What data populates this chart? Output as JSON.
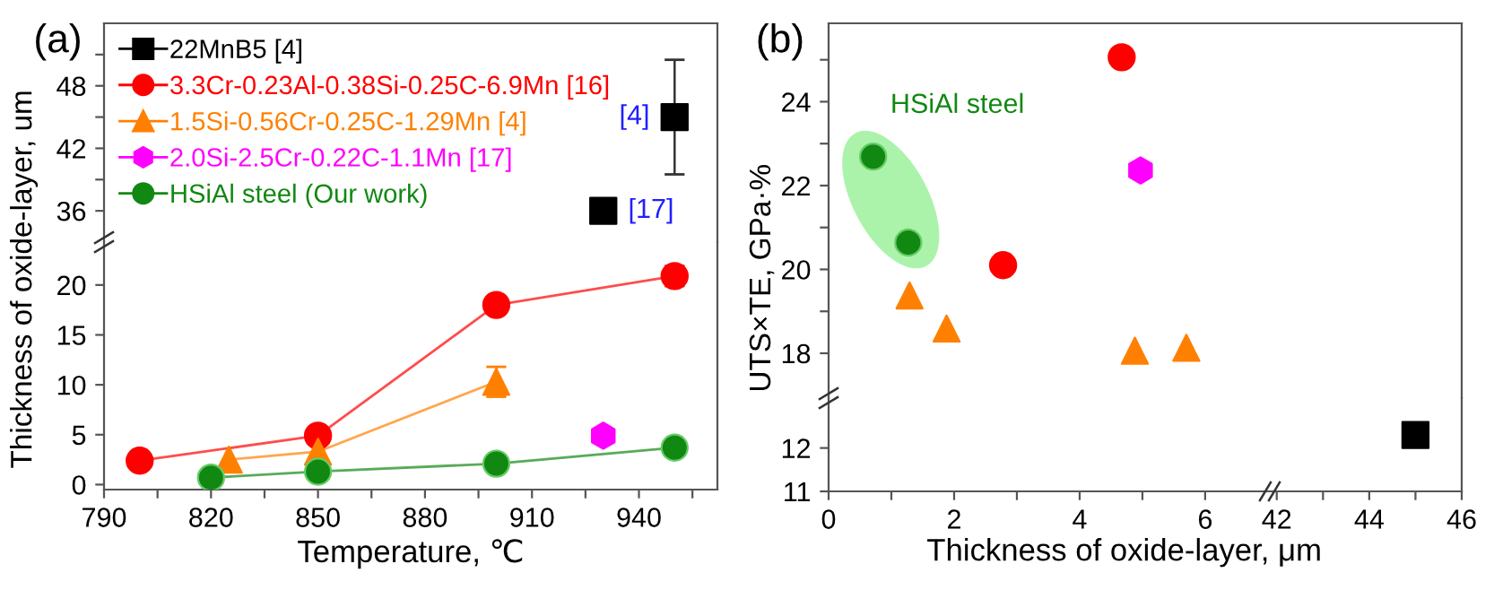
{
  "chart_data": [
    {
      "type": "line",
      "title": "(a)",
      "xlim": [
        790,
        962
      ],
      "ylim": [
        33,
        54
      ],
      "yticks": [
        36,
        {
          "value": 39,
          "label": null
        },
        42,
        {
          "value": 45,
          "label": null
        },
        48,
        {
          "value": 51,
          "label": null
        }
      ],
      "tick_labels": "y",
      "legend": "top left",
      "annotations": [
        {
          "text": "[4]",
          "x": 950,
          "y": 45
        },
        {
          "text": "[17]",
          "x": 930,
          "y": 36
        }
      ],
      "series": [
        {
          "name": "22MnB5 [4]",
          "type": "scatter",
          "color": "#000000",
          "marker": "square",
          "x": [
            930,
            950
          ],
          "values": [
            36,
            45
          ],
          "errors": [
            null,
            [
              39.5,
              50.5
            ]
          ]
        },
        {
          "name": "3.3Cr-0.23Al-0.38Si-0.25C-6.9Mn [16]",
          "type": "line",
          "color": "#ff0000",
          "marker": "circle"
        },
        {
          "name": "1.5Si-0.56Cr-0.25C-1.29Mn [4]",
          "type": "line",
          "color": "#ff8000",
          "marker": "triangle"
        },
        {
          "name": "2.0Si-2.5Cr-0.22C-1.1Mn [17]",
          "type": "line",
          "color": "#ff00ff"
        },
        {
          "name": "HSiAl steel (Our work)",
          "type": "line",
          "color": "#118811",
          "marker": "circle"
        }
      ]
    },
    {
      "type": "line",
      "xlabel": "Temperature, ℃",
      "ylabel": "Thickness of oxide-layer, um",
      "xlim": [
        790,
        962
      ],
      "ylim": [
        -0.5,
        24.3
      ],
      "xticks": [
        790,
        {
          "value": 805,
          "label": null
        },
        820,
        {
          "value": 835,
          "label": null
        },
        850,
        {
          "value": 865,
          "label": null
        },
        880,
        {
          "value": 895,
          "label": null
        },
        910,
        {
          "value": 925,
          "label": null
        },
        940,
        {
          "value": 955,
          "label": null
        }
      ],
      "yticks": [
        0,
        5,
        10,
        15,
        20
      ],
      "series": [
        {
          "type": "line",
          "color": "#ff0000",
          "marker": "circle",
          "x": [
            800,
            850,
            900,
            950
          ],
          "values": [
            2.4,
            4.9,
            18.0,
            20.9
          ],
          "errors": [
            null,
            null,
            null,
            1
          ]
        },
        {
          "type": "line",
          "color": "#ff8000",
          "marker": "triangle",
          "x": [
            825,
            850,
            900
          ],
          "values": [
            2.5,
            3.3,
            10.3
          ],
          "errors": [
            null,
            null,
            [
              8.8,
              11.8
            ]
          ]
        },
        {
          "type": "scatter",
          "color": "#ff00ff",
          "x": [
            930
          ],
          "values": [
            4.9
          ]
        },
        {
          "type": "line",
          "color": "#118811",
          "marker": "circle",
          "x": [
            820,
            850,
            900,
            950
          ],
          "values": [
            0.7,
            1.3,
            2.1,
            3.7
          ]
        }
      ]
    },
    {
      "type": "scatter",
      "title": "(b)",
      "ylabel": "UTS×TE, GPa·%",
      "xlim": [
        0,
        7.03
      ],
      "ylim": [
        16.93,
        25.87
      ],
      "yticks": [
        18,
        {
          "value": 19,
          "label": null
        },
        20,
        {
          "value": 21,
          "label": null
        },
        22,
        {
          "value": 23,
          "label": null
        },
        24,
        {
          "value": 25,
          "label": null
        }
      ],
      "tick_labels": "y",
      "annotations": [
        "HSiAl steel"
      ],
      "series": [
        {
          "color": "#118811",
          "marker": "circle",
          "x": [
            0.71,
            1.27
          ],
          "values": [
            22.69,
            20.64
          ]
        },
        {
          "color": "#ff0000",
          "marker": "circle",
          "x": [
            2.78,
            4.67
          ],
          "values": [
            20.1,
            25.06
          ]
        },
        {
          "color": "#ff00ff",
          "x": [
            4.97
          ],
          "values": [
            22.36
          ]
        },
        {
          "color": "#ff8000",
          "marker": "triangle",
          "x": [
            1.29,
            1.88,
            4.88,
            5.7
          ],
          "values": [
            19.38,
            18.59,
            18.06,
            18.13
          ]
        }
      ]
    },
    {
      "type": "scatter",
      "xlim": [
        41.85,
        46
      ],
      "ylim": [
        16.93,
        25.87
      ],
      "tick_labels": false
    },
    {
      "type": "scatter",
      "xlabel": "Thickness of oxide-layer, μm",
      "xlim": [
        0,
        7.03
      ],
      "ylim": [
        11,
        13.15
      ],
      "xticks": [
        0,
        {
          "value": 1,
          "label": null
        },
        2,
        {
          "value": 3,
          "label": null
        },
        4,
        {
          "value": 5,
          "label": null
        },
        6
      ],
      "yticks": [
        11,
        12
      ]
    },
    {
      "type": "scatter",
      "xlim": [
        41.85,
        46
      ],
      "ylim": [
        11,
        13.15
      ],
      "xticks": [
        42,
        {
          "value": 43,
          "label": null
        },
        44,
        {
          "value": 45,
          "label": null
        },
        46
      ],
      "tick_labels": "x",
      "series": [
        {
          "color": "#000000",
          "marker": "square",
          "x": [
            45
          ],
          "values": [
            12.3
          ]
        }
      ]
    }
  ]
}
